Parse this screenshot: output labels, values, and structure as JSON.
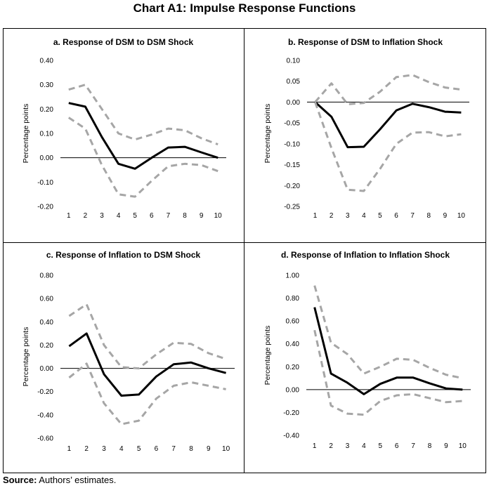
{
  "title": "Chart A1: Impulse Response Functions",
  "source": {
    "label": "Source:",
    "text": " Authors’ estimates."
  },
  "colors": {
    "response": "#000000",
    "band": "#a6a6a6",
    "axis": "#000000"
  },
  "chart_data": [
    {
      "type": "line",
      "title": "a. Response of DSM to DSM Shock",
      "ylabel": "Percentage points",
      "xlabel": "",
      "categories": [
        "1",
        "2",
        "3",
        "4",
        "5",
        "6",
        "7",
        "8",
        "9",
        "10"
      ],
      "ylim": [
        -0.2,
        0.4
      ],
      "yticks": [
        0.4,
        0.3,
        0.2,
        0.1,
        0.0,
        -0.1,
        -0.2
      ],
      "ytick_labels": [
        "0.40",
        "0.30",
        "0.20",
        "0.10",
        "0.00",
        "-0.10",
        "-0.20"
      ],
      "series": [
        {
          "role": "response",
          "values": [
            0.225,
            0.21,
            0.085,
            -0.025,
            -0.045,
            0.0,
            0.042,
            0.045,
            0.022,
            0.0
          ]
        },
        {
          "role": "upper",
          "values": [
            0.28,
            0.3,
            0.2,
            0.1,
            0.075,
            0.095,
            0.12,
            0.113,
            0.08,
            0.055
          ]
        },
        {
          "role": "lower",
          "values": [
            0.165,
            0.12,
            -0.03,
            -0.15,
            -0.16,
            -0.095,
            -0.035,
            -0.025,
            -0.03,
            -0.055
          ]
        }
      ]
    },
    {
      "type": "line",
      "title": "b. Response of DSM to Inflation Shock",
      "ylabel": "Percentage points",
      "xlabel": "",
      "categories": [
        "1",
        "2",
        "3",
        "4",
        "5",
        "6",
        "7",
        "8",
        "9",
        "10"
      ],
      "ylim": [
        -0.25,
        0.1
      ],
      "yticks": [
        0.1,
        0.05,
        0.0,
        -0.05,
        -0.1,
        -0.15,
        -0.2,
        -0.25
      ],
      "ytick_labels": [
        "0.10",
        "0.05",
        "0.00",
        "-0.05",
        "-0.10",
        "-0.15",
        "-0.20",
        "-0.25"
      ],
      "series": [
        {
          "role": "response",
          "values": [
            0.0,
            -0.035,
            -0.108,
            -0.107,
            -0.065,
            -0.02,
            -0.004,
            -0.012,
            -0.023,
            -0.025
          ]
        },
        {
          "role": "upper",
          "values": [
            0.0,
            0.045,
            -0.005,
            -0.002,
            0.025,
            0.06,
            0.065,
            0.048,
            0.035,
            0.03
          ]
        },
        {
          "role": "lower",
          "values": [
            0.0,
            -0.11,
            -0.21,
            -0.213,
            -0.16,
            -0.1,
            -0.073,
            -0.072,
            -0.082,
            -0.077
          ]
        }
      ]
    },
    {
      "type": "line",
      "title": "c. Response of Inflation to DSM Shock",
      "ylabel": "Percentage points",
      "xlabel": "",
      "categories": [
        "1",
        "2",
        "3",
        "4",
        "5",
        "6",
        "7",
        "8",
        "9",
        "10"
      ],
      "ylim": [
        -0.6,
        0.8
      ],
      "yticks": [
        0.8,
        0.6,
        0.4,
        0.2,
        0.0,
        -0.2,
        -0.4,
        -0.6
      ],
      "ytick_labels": [
        "0.80",
        "0.60",
        "0.40",
        "0.20",
        "0.00",
        "-0.20",
        "-0.40",
        "-0.60"
      ],
      "series": [
        {
          "role": "response",
          "values": [
            0.19,
            0.3,
            -0.05,
            -0.235,
            -0.225,
            -0.07,
            0.035,
            0.05,
            0.0,
            -0.04
          ]
        },
        {
          "role": "upper",
          "values": [
            0.45,
            0.55,
            0.2,
            0.01,
            0.0,
            0.12,
            0.22,
            0.21,
            0.13,
            0.08
          ]
        },
        {
          "role": "lower",
          "values": [
            -0.08,
            0.04,
            -0.3,
            -0.48,
            -0.45,
            -0.26,
            -0.15,
            -0.12,
            -0.15,
            -0.18
          ]
        }
      ]
    },
    {
      "type": "line",
      "title": "d. Response of Inflation to Inflation Shock",
      "ylabel": "Percentage points",
      "xlabel": "",
      "categories": [
        "1",
        "2",
        "3",
        "4",
        "5",
        "6",
        "7",
        "8",
        "9",
        "10"
      ],
      "ylim": [
        -0.4,
        1.0
      ],
      "yticks": [
        1.0,
        0.8,
        0.6,
        0.4,
        0.2,
        0.0,
        -0.2,
        -0.4
      ],
      "ytick_labels": [
        "1.00",
        "0.80",
        "0.60",
        "0.40",
        "0.20",
        "0.00",
        "-0.20",
        "-0.40"
      ],
      "series": [
        {
          "role": "response",
          "values": [
            0.72,
            0.14,
            0.06,
            -0.04,
            0.05,
            0.105,
            0.105,
            0.055,
            0.01,
            0.0
          ]
        },
        {
          "role": "upper",
          "values": [
            0.91,
            0.41,
            0.31,
            0.14,
            0.2,
            0.27,
            0.26,
            0.19,
            0.13,
            0.1
          ]
        },
        {
          "role": "lower",
          "values": [
            0.52,
            -0.14,
            -0.21,
            -0.22,
            -0.1,
            -0.05,
            -0.04,
            -0.075,
            -0.11,
            -0.1
          ]
        }
      ]
    }
  ]
}
